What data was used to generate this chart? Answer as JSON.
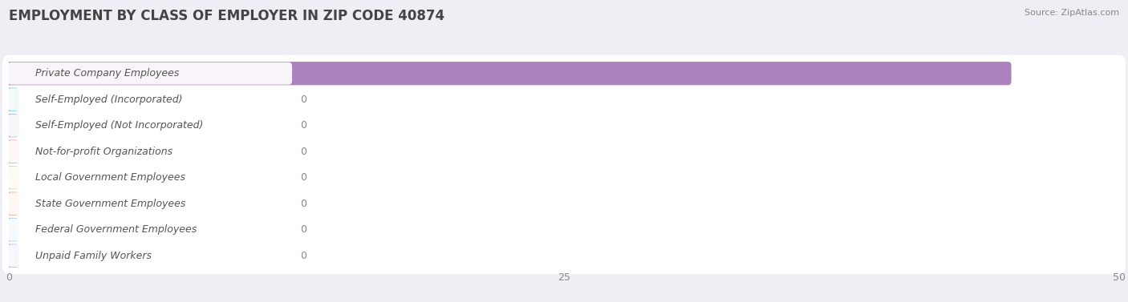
{
  "title": "EMPLOYMENT BY CLASS OF EMPLOYER IN ZIP CODE 40874",
  "source": "Source: ZipAtlas.com",
  "categories": [
    "Private Company Employees",
    "Self-Employed (Incorporated)",
    "Self-Employed (Not Incorporated)",
    "Not-for-profit Organizations",
    "Local Government Employees",
    "State Government Employees",
    "Federal Government Employees",
    "Unpaid Family Workers"
  ],
  "values": [
    45,
    0,
    0,
    0,
    0,
    0,
    0,
    0
  ],
  "bar_colors": [
    "#ab82be",
    "#68c9c9",
    "#9ea8d8",
    "#f592a8",
    "#f5c490",
    "#f5a090",
    "#98c8f0",
    "#b8a8d8"
  ],
  "xlim": [
    0,
    50
  ],
  "xticks": [
    0,
    25,
    50
  ],
  "bg_color": "#f0eef5",
  "row_bg_color": "#ffffff",
  "bar_bg_color": "#e2dff0",
  "title_fontsize": 12,
  "label_fontsize": 9,
  "value_fontsize": 9,
  "figsize": [
    14.06,
    3.77
  ],
  "dpi": 100
}
